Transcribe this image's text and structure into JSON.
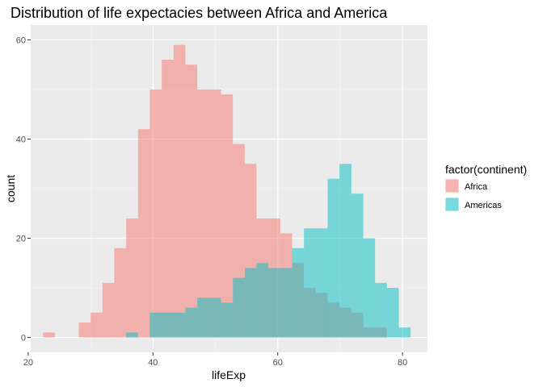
{
  "chart_data": {
    "type": "histogram",
    "title": "Distribution of life expectacies between Africa and America",
    "xlabel": "lifeExp",
    "ylabel": "count",
    "xlim": [
      20.4,
      84.0
    ],
    "ylim": [
      -3,
      63
    ],
    "x_ticks": [
      20,
      40,
      60,
      80
    ],
    "y_ticks": [
      0,
      20,
      40,
      60
    ],
    "bin_width": 1.9,
    "grid": true,
    "legend": {
      "title": "factor(continent)",
      "position": "right"
    },
    "series": [
      {
        "name": "Africa",
        "color": "#F8766D",
        "bins": [
          {
            "x": 23.35,
            "count": 1
          },
          {
            "x": 29.05,
            "count": 3
          },
          {
            "x": 30.95,
            "count": 5
          },
          {
            "x": 32.85,
            "count": 11
          },
          {
            "x": 34.75,
            "count": 18
          },
          {
            "x": 36.65,
            "count": 24
          },
          {
            "x": 38.55,
            "count": 42
          },
          {
            "x": 40.45,
            "count": 50
          },
          {
            "x": 42.35,
            "count": 56
          },
          {
            "x": 44.25,
            "count": 59
          },
          {
            "x": 46.15,
            "count": 55
          },
          {
            "x": 48.05,
            "count": 50
          },
          {
            "x": 49.95,
            "count": 50
          },
          {
            "x": 51.85,
            "count": 49
          },
          {
            "x": 53.75,
            "count": 39
          },
          {
            "x": 55.65,
            "count": 35
          },
          {
            "x": 57.55,
            "count": 24
          },
          {
            "x": 59.45,
            "count": 24
          },
          {
            "x": 61.35,
            "count": 21
          },
          {
            "x": 63.25,
            "count": 15
          },
          {
            "x": 65.15,
            "count": 10
          },
          {
            "x": 67.05,
            "count": 9
          },
          {
            "x": 68.95,
            "count": 7
          },
          {
            "x": 70.85,
            "count": 6
          },
          {
            "x": 72.75,
            "count": 5
          },
          {
            "x": 74.65,
            "count": 2
          },
          {
            "x": 76.55,
            "count": 2
          }
        ]
      },
      {
        "name": "Americas",
        "color": "#00BFC4",
        "bins": [
          {
            "x": 36.65,
            "count": 1
          },
          {
            "x": 40.45,
            "count": 5
          },
          {
            "x": 42.35,
            "count": 5
          },
          {
            "x": 44.25,
            "count": 5
          },
          {
            "x": 46.15,
            "count": 6
          },
          {
            "x": 48.05,
            "count": 8
          },
          {
            "x": 49.95,
            "count": 8
          },
          {
            "x": 51.85,
            "count": 7
          },
          {
            "x": 53.75,
            "count": 12
          },
          {
            "x": 55.65,
            "count": 14
          },
          {
            "x": 57.55,
            "count": 15
          },
          {
            "x": 59.45,
            "count": 14
          },
          {
            "x": 61.35,
            "count": 14
          },
          {
            "x": 63.25,
            "count": 18
          },
          {
            "x": 65.15,
            "count": 22
          },
          {
            "x": 67.05,
            "count": 22
          },
          {
            "x": 68.95,
            "count": 32
          },
          {
            "x": 70.85,
            "count": 35
          },
          {
            "x": 72.75,
            "count": 29
          },
          {
            "x": 74.65,
            "count": 20
          },
          {
            "x": 76.55,
            "count": 11
          },
          {
            "x": 78.45,
            "count": 10
          },
          {
            "x": 80.35,
            "count": 2
          }
        ]
      }
    ]
  }
}
